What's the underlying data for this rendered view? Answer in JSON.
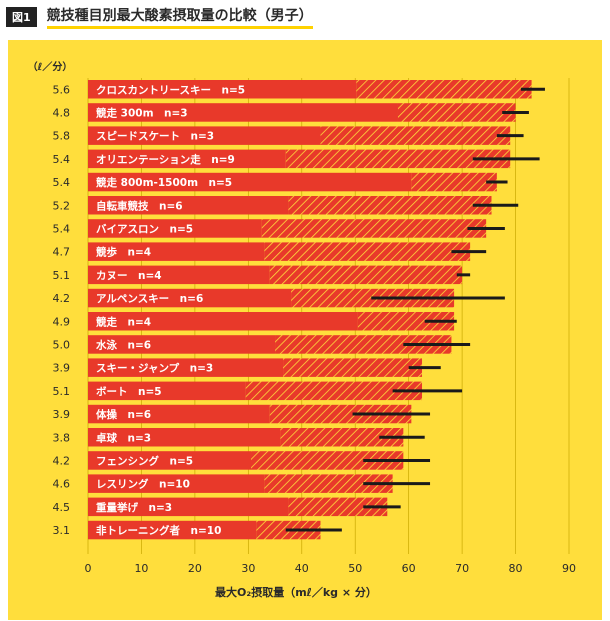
{
  "figure_label": "図1",
  "title": "競技種目別最大酸素摂取量の比較（男子）",
  "colors": {
    "background": "#ffde3c",
    "bar": "#e8392a",
    "hatch_line": "#ffde3c",
    "whisker": "#1a1a1a",
    "label_text": "#ffffff",
    "axis_text": "#2a2a2a"
  },
  "chart_data": {
    "type": "bar",
    "orientation": "horizontal",
    "title": "競技種目別最大酸素摂取量の比較（男子）",
    "xlabel": "最大O₂摂取量（mℓ／kg × 分）",
    "y_unit_label": "（ℓ／分）",
    "xlim": [
      0,
      90
    ],
    "xticks": [
      0,
      10,
      20,
      30,
      40,
      50,
      60,
      70,
      80,
      90
    ],
    "grid": true,
    "categories": [
      "クロスカントリースキー　n=5",
      "競走 300m　n=3",
      "スピードスケート　n=3",
      "オリエンテーション走　n=9",
      "競走 800m-1500m　n=5",
      "自転車競技　n=6",
      "バイアスロン　n=5",
      "競歩　n=4",
      "カヌー　n=4",
      "アルペンスキー　n=6",
      "競走　n=4",
      "水泳　n=6",
      "スキー・ジャンプ　n=3",
      "ボート　n=5",
      "体操　n=6",
      "卓球　n=3",
      "フェンシング　n=5",
      "レスリング　n=10",
      "重量挙げ　n=3",
      "非トレーニング者　n=10"
    ],
    "liters_per_min": [
      "5.6",
      "4.8",
      "5.8",
      "5.4",
      "5.4",
      "5.2",
      "5.4",
      "4.7",
      "5.1",
      "4.2",
      "4.9",
      "5.0",
      "3.9",
      "5.1",
      "3.9",
      "3.8",
      "4.2",
      "4.6",
      "4.5",
      "3.1"
    ],
    "series": [
      {
        "name": "solid",
        "values": [
          50.2,
          58.0,
          43.5,
          37.0,
          60.5,
          37.5,
          32.5,
          33.0,
          34.0,
          38.0,
          50.5,
          35.0,
          36.5,
          29.5,
          34.0,
          36.0,
          30.5,
          33.0,
          37.5,
          31.5
        ]
      },
      {
        "name": "total",
        "values": [
          83.0,
          80.0,
          79.0,
          79.0,
          76.5,
          75.5,
          74.5,
          71.5,
          70.0,
          68.5,
          68.5,
          68.0,
          62.5,
          62.5,
          60.5,
          59.0,
          59.0,
          57.0,
          56.0,
          43.5
        ]
      }
    ],
    "error_ranges": [
      [
        81,
        85.5
      ],
      [
        77.5,
        82.5
      ],
      [
        76.5,
        81.5
      ],
      [
        72,
        84.5
      ],
      [
        74.5,
        78.5
      ],
      [
        72,
        80.5
      ],
      [
        71,
        78
      ],
      [
        68,
        74.5
      ],
      [
        69,
        71.5
      ],
      [
        53,
        78
      ],
      [
        63,
        69
      ],
      [
        59,
        71.5
      ],
      [
        60,
        66
      ],
      [
        57,
        70
      ],
      [
        49.5,
        64
      ],
      [
        54.5,
        63
      ],
      [
        51.5,
        64
      ],
      [
        51.5,
        64
      ],
      [
        51.5,
        58.5
      ],
      [
        37,
        47.5
      ]
    ]
  }
}
